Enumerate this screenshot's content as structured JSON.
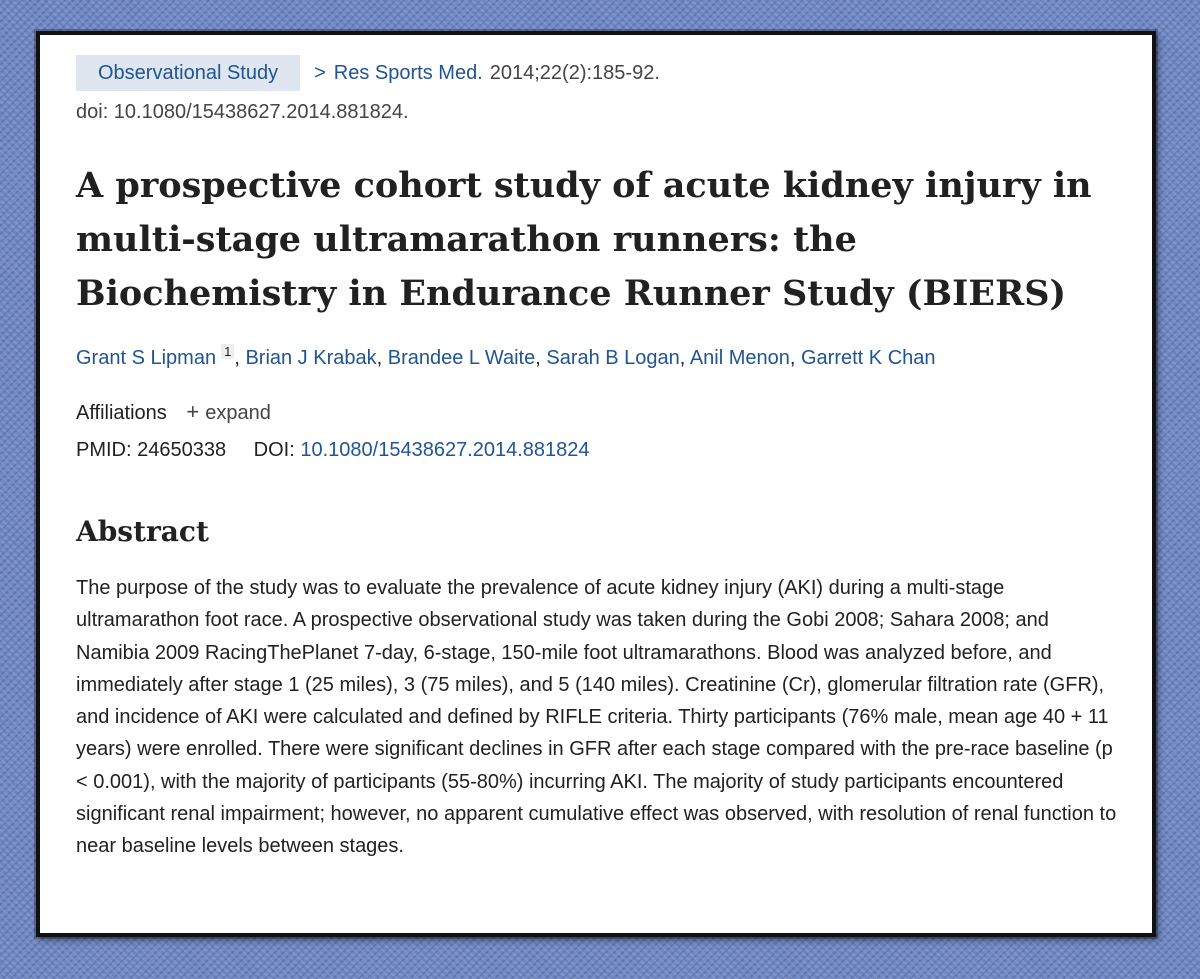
{
  "meta": {
    "publication_type": "Observational Study",
    "chevron": ">",
    "journal": "Res Sports Med.",
    "citation": "2014;22(2):185-92.",
    "doi_line": "doi: 10.1080/15438627.2014.881824."
  },
  "title": "A prospective cohort study of acute kidney injury in multi-stage ultramarathon runners: the Biochemistry in Endurance Runner Study (BIERS)",
  "authors": [
    {
      "name": "Grant S Lipman",
      "affiliation_ref": "1"
    },
    {
      "name": "Brian J Krabak"
    },
    {
      "name": "Brandee L Waite"
    },
    {
      "name": "Sarah B Logan"
    },
    {
      "name": "Anil Menon"
    },
    {
      "name": "Garrett K Chan"
    }
  ],
  "affiliations": {
    "label": "Affiliations",
    "expand_label": "expand",
    "expand_icon": "plus-icon"
  },
  "ids": {
    "pmid_label": "PMID:",
    "pmid": "24650338",
    "doi_label": "DOI:",
    "doi": "10.1080/15438627.2014.881824"
  },
  "abstract": {
    "heading": "Abstract",
    "text": "The purpose of the study was to evaluate the prevalence of acute kidney injury (AKI) during a multi-stage ultramarathon foot race. A prospective observational study was taken during the Gobi 2008; Sahara 2008; and Namibia 2009 RacingThePlanet 7-day, 6-stage, 150-mile foot ultramarathons. Blood was analyzed before, and immediately after stage 1 (25 miles), 3 (75 miles), and 5 (140 miles). Creatinine (Cr), glomerular filtration rate (GFR), and incidence of AKI were calculated and defined by RIFLE criteria. Thirty participants (76% male, mean age 40 + 11 years) were enrolled. There were significant declines in GFR after each stage compared with the pre-race baseline (p < 0.001), with the majority of participants (55-80%) incurring AKI. The majority of study participants encountered significant renal impairment; however, no apparent cumulative effect was observed, with resolution of renal function to near baseline levels between stages."
  },
  "colors": {
    "link": "#205493",
    "text": "#212121",
    "pub_type_bg": "#dfe6ef",
    "background": "#6f86c4"
  }
}
